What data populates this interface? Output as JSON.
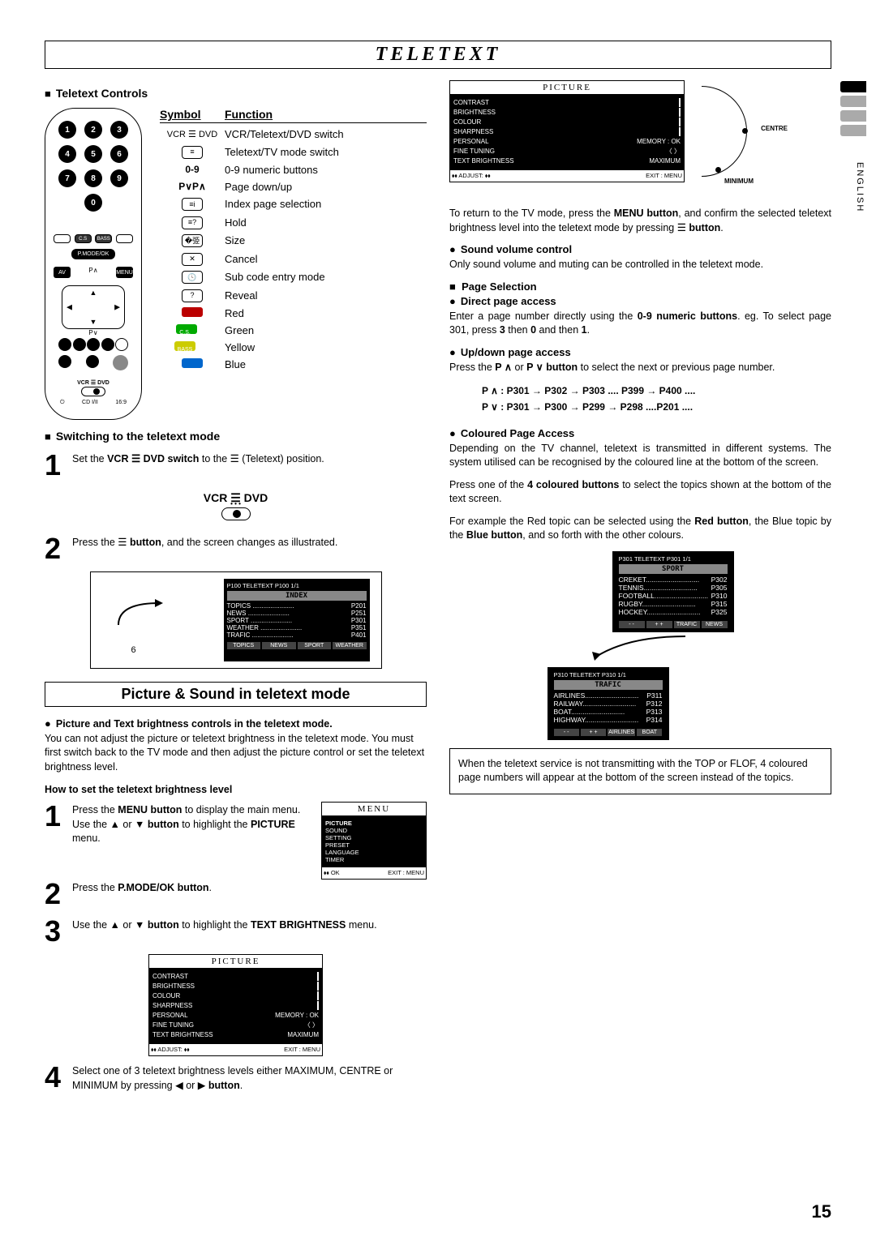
{
  "title": "TELETEXT",
  "page_number": "15",
  "side_language": "ENGLISH",
  "left": {
    "h_controls": "Teletext Controls",
    "sym_h1": "Symbol",
    "sym_h2": "Function",
    "rows": [
      {
        "sym": "VCR ☰ DVD",
        "fn": "VCR/Teletext/DVD switch",
        "type": "text"
      },
      {
        "sym": "≡",
        "fn": "Teletext/TV mode switch",
        "type": "icon"
      },
      {
        "sym": "0-9",
        "fn": "0-9 numeric buttons",
        "type": "bold"
      },
      {
        "sym": "P∨P∧",
        "fn": "Page down/up",
        "type": "bold"
      },
      {
        "sym": "≡i",
        "fn": "Index page selection",
        "type": "icon"
      },
      {
        "sym": "≡?",
        "fn": "Hold",
        "type": "icon"
      },
      {
        "sym": "�弫",
        "fn": "Size",
        "type": "icon"
      },
      {
        "sym": "✕",
        "fn": "Cancel",
        "type": "icon"
      },
      {
        "sym": "🕓",
        "fn": "Sub code entry mode",
        "type": "icon"
      },
      {
        "sym": "?",
        "fn": "Reveal",
        "type": "icon"
      },
      {
        "sym": "",
        "fn": "Red",
        "type": "color",
        "cls": "red"
      },
      {
        "sym": "C.S.",
        "fn": "Green",
        "type": "color",
        "cls": "green"
      },
      {
        "sym": "BASS",
        "fn": "Yellow",
        "type": "color",
        "cls": "yellow"
      },
      {
        "sym": "",
        "fn": "Blue",
        "type": "color",
        "cls": "blue"
      }
    ],
    "h_switch": "Switching to the teletext mode",
    "step1": "Set the <b>VCR ☰ DVD switch</b> to the ☰ (Teletext) position.",
    "switch_lbl": "VCR ☰ DVD",
    "step2": "Press the ☰ <b>button</b>, and the screen changes as illustrated.",
    "tv_header": "P100    TELETEXT P100        1/1",
    "tv_title": "INDEX",
    "tv_rows": [
      {
        "l": "TOPICS",
        "r": "P201"
      },
      {
        "l": "NEWS",
        "r": "P251"
      },
      {
        "l": "SPORT",
        "r": "P301"
      },
      {
        "l": "WEATHER",
        "r": "P351"
      },
      {
        "l": "TRAFIC",
        "r": "P401"
      }
    ],
    "tv_six": "6",
    "section2": "Picture & Sound in teletext mode",
    "pic_bullet": "Picture and Text brightness controls in the teletext mode.",
    "pic_para": "You can not adjust the picture or teletext brightness in the teletext mode. You must first switch back to the TV mode and then adjust the picture control or set the teletext brightness level.",
    "howto": "How to set the teletext brightness level",
    "b_step1": "Press the <b>MENU button</b> to display the main menu. Use the ▲ or ▼ <b>button</b> to highlight the <b>PICTURE</b> menu.",
    "b_step2": "Press the <b>P.MODE/OK button</b>.",
    "b_step3": "Use the ▲ or ▼ <b>button</b> to highlight the <b>TEXT BRIGHTNESS</b> menu.",
    "b_step4": "Select one of 3 teletext brightness levels either MAXIMUM, CENTRE or MINIMUM by pressing ◀ or ▶ <b>button</b>.",
    "menu_title": "MENU",
    "menu_items": [
      "PICTURE",
      "SOUND",
      "SETTING",
      "PRESET",
      "LANGUAGE",
      "TIMER"
    ],
    "menu_foot_l": "⬧⬧ OK",
    "menu_foot_r": "EXIT : MENU",
    "pic_title": "PICTURE",
    "pic_rows": [
      {
        "l": "CONTRAST",
        "r": ""
      },
      {
        "l": "BRIGHTNESS",
        "r": ""
      },
      {
        "l": "COLOUR",
        "r": ""
      },
      {
        "l": "SHARPNESS",
        "r": ""
      },
      {
        "l": "PERSONAL",
        "r": "MEMORY : OK"
      },
      {
        "l": "FINE TUNING",
        "r": "〈  〉"
      },
      {
        "l": "TEXT BRIGHTNESS",
        "r": "MAXIMUM"
      }
    ],
    "pic_foot_l": "⬧⬧   ADJUST: ⬧⬧",
    "pic_foot_r": "EXIT : MENU"
  },
  "right": {
    "pic_title": "PICTURE",
    "pic_rows": [
      {
        "l": "CONTRAST",
        "r": ""
      },
      {
        "l": "BRIGHTNESS",
        "r": ""
      },
      {
        "l": "COLOUR",
        "r": ""
      },
      {
        "l": "SHARPNESS",
        "r": ""
      },
      {
        "l": "PERSONAL",
        "r": "MEMORY : OK"
      },
      {
        "l": "FINE TUNING",
        "r": "〈   〉"
      },
      {
        "l": "TEXT BRIGHTNESS",
        "r": "MAXIMUM"
      }
    ],
    "pic_foot_l": "⬧⬧   ADJUST: ⬧⬧",
    "pic_foot_r": "EXIT : MENU",
    "arc_labels": [
      "CENTRE",
      "MINIMUM"
    ],
    "return_para": "To return to the TV mode, press the <b>MENU button</b>, and confirm the selected teletext brightness level into the teletext mode by pressing ☰ <b>button</b>.",
    "h_sound": "Sound volume control",
    "sound_para": "Only sound volume and muting can be controlled in the teletext mode.",
    "h_pagesel": "Page Selection",
    "h_direct": "Direct page access",
    "direct_para": "Enter a page number directly using the <b>0-9 numeric buttons</b>. eg. To select page 301, press <b>3</b> then <b>0</b> and then <b>1</b>.",
    "h_updown": "Up/down page access",
    "updown_para": "Press the <b>P ∧</b> or <b>P ∨ button</b> to select the next or previous page number.",
    "seq1": "P ∧  : P301 → P302 → P303 .... P399 →  P400 ....",
    "seq2": "P ∨  : P301 → P300 → P299 → P298  ....P201 ....",
    "h_colour": "Coloured Page Access",
    "colour_p1": "Depending on the TV channel, teletext is transmitted in different systems. The system utilised can be recognised by the coloured line at the bottom of the screen.",
    "colour_p2": "Press one of the <b>4 coloured buttons</b> to select the topics shown at the bottom of the text screen.",
    "colour_p3": "For example the Red topic can be selected using the <b>Red button</b>, the Blue topic by the <b>Blue button</b>, and so forth with the other colours.",
    "tt1_hdr": "P301    TELETEXT P301        1/1",
    "tt1_title": "SPORT",
    "tt1_rows": [
      {
        "l": "CREKET",
        "r": "P302"
      },
      {
        "l": "TENNIS",
        "r": "P305"
      },
      {
        "l": "FOOTBALL",
        "r": "P310"
      },
      {
        "l": "RUGBY",
        "r": "P315"
      },
      {
        "l": "HOCKEY",
        "r": "P325"
      }
    ],
    "tt1_foot": [
      "- -",
      "+ +",
      "TRAFIC",
      "NEWS"
    ],
    "tt2_hdr": "P310     TELETEXT P310         1/1",
    "tt2_title": "TRAFIC",
    "tt2_rows": [
      {
        "l": "AIRLINES",
        "r": "P311"
      },
      {
        "l": "RAILWAY",
        "r": "P312"
      },
      {
        "l": "BOAT",
        "r": "P313"
      },
      {
        "l": "HIGHWAY",
        "r": "P314"
      }
    ],
    "tt2_foot": [
      "- -",
      "+ +",
      "AIRLINES",
      "BOAT"
    ],
    "note": "When the teletext service is not transmitting with the TOP or FLOF, 4 coloured page numbers will appear at the bottom of the screen instead of the topics."
  }
}
